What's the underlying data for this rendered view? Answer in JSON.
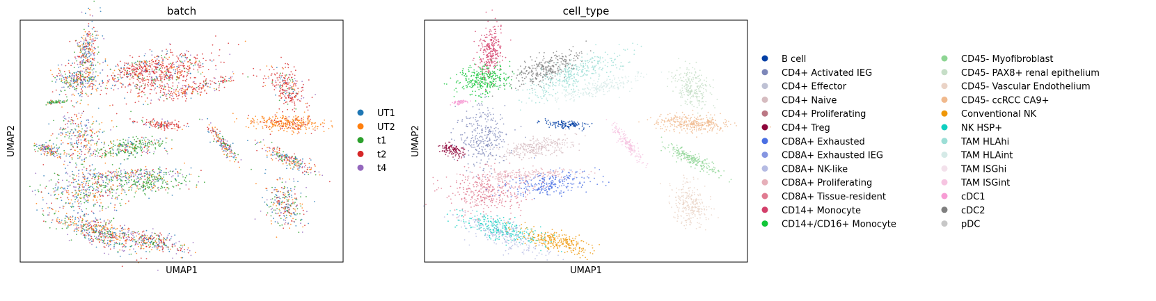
{
  "chart_data": [
    {
      "type": "scatter",
      "title": "batch",
      "xlabel": "UMAP1",
      "ylabel": "UMAP2",
      "grid": false,
      "ticks": false,
      "legend_position": "right",
      "legend": [
        {
          "label": "UT1",
          "color": "#1f77b4"
        },
        {
          "label": "UT2",
          "color": "#ff7f0e"
        },
        {
          "label": "t1",
          "color": "#2ca02c"
        },
        {
          "label": "t2",
          "color": "#d62728"
        },
        {
          "label": "t4",
          "color": "#9467bd"
        }
      ]
    },
    {
      "type": "scatter",
      "title": "cell_type",
      "xlabel": "UMAP1",
      "ylabel": "UMAP2",
      "grid": false,
      "ticks": false,
      "legend_position": "right, two columns",
      "legend": [
        {
          "label": "B cell",
          "color": "#023fa5"
        },
        {
          "label": "CD4+ Activated IEG",
          "color": "#7d87b9"
        },
        {
          "label": "CD4+ Effector",
          "color": "#bec1d4"
        },
        {
          "label": "CD4+ Naive",
          "color": "#d6bcc0"
        },
        {
          "label": "CD4+ Proliferating",
          "color": "#bb7784"
        },
        {
          "label": "CD4+ Treg",
          "color": "#8e063b"
        },
        {
          "label": "CD8A+ Exhausted",
          "color": "#4a6fe3"
        },
        {
          "label": "CD8A+ Exhausted IEG",
          "color": "#8595e1"
        },
        {
          "label": "CD8A+ NK-like",
          "color": "#b5bbe3"
        },
        {
          "label": "CD8A+ Proliferating",
          "color": "#e6afb9"
        },
        {
          "label": "CD8A+ Tissue-resident",
          "color": "#e07b91"
        },
        {
          "label": "CD14+ Monocyte",
          "color": "#d33f6a"
        },
        {
          "label": "CD14+/CD16+ Monocyte",
          "color": "#11c638"
        },
        {
          "label": "CD45- Myofibroblast",
          "color": "#8dd593"
        },
        {
          "label": "CD45- PAX8+ renal epithelium",
          "color": "#c6dec7"
        },
        {
          "label": "CD45- Vascular Endothelium",
          "color": "#ead3c6"
        },
        {
          "label": "CD45- ccRCC CA9+",
          "color": "#f0b98d"
        },
        {
          "label": "Conventional NK",
          "color": "#ef9708"
        },
        {
          "label": "NK HSP+",
          "color": "#0fcfc0"
        },
        {
          "label": "TAM HLAhi",
          "color": "#9cded6"
        },
        {
          "label": "TAM HLAint",
          "color": "#d5eae7"
        },
        {
          "label": "TAM ISGhi",
          "color": "#f3e1eb"
        },
        {
          "label": "TAM ISGint",
          "color": "#f6c4e1"
        },
        {
          "label": "cDC1",
          "color": "#f79cd4"
        },
        {
          "label": "cDC2",
          "color": "#7f7f7f"
        },
        {
          "label": "pDC",
          "color": "#c7c7c7"
        }
      ]
    }
  ]
}
